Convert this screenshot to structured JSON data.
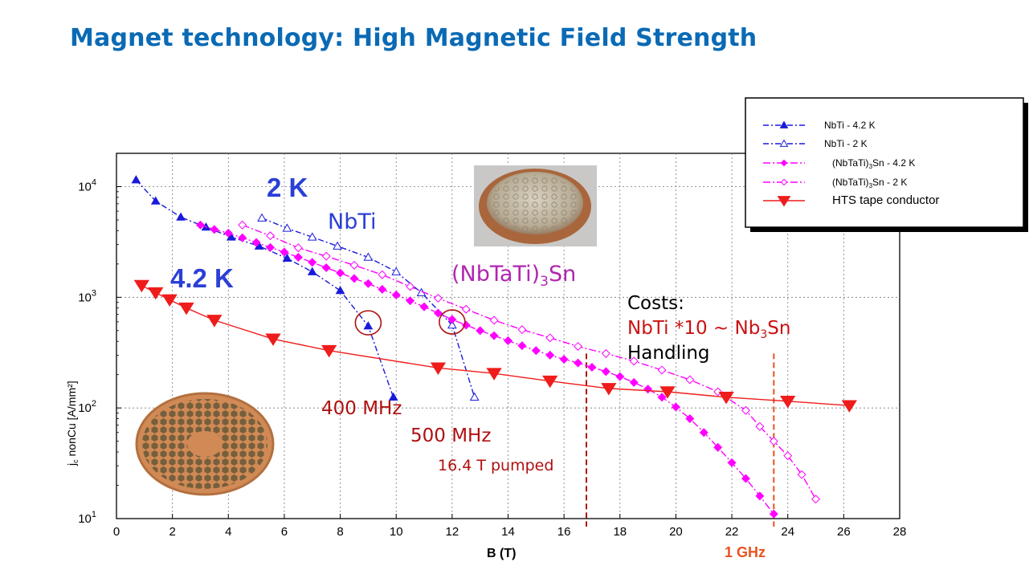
{
  "slide": {
    "title": "Magnet technology: High Magnetic Field Strength"
  },
  "colors": {
    "title": "#0a6ab5",
    "nbti": "#1a1adb",
    "nbtatisn": "#ff00ff",
    "hts": "#ef1c1c",
    "anno_blue": "#2b3fd6",
    "anno_red": "#cc1111",
    "freq_red": "#b01010",
    "ghz": "#e8531f",
    "nbtatisn_text": "#b026b0"
  },
  "chart_data": {
    "type": "line",
    "title": "",
    "xlabel": "B (T)",
    "ylabel": "j_c nonCu [A/mm²]",
    "ylabel_main": "j",
    "ylabel_sub": "c",
    "ylabel_rest": " nonCu [A/mm²]",
    "xlim": [
      0,
      28
    ],
    "ylim": [
      10,
      20000
    ],
    "yscale": "log",
    "grid": true,
    "x_ticks": [
      "0",
      "2",
      "4",
      "6",
      "8",
      "10",
      "12",
      "14",
      "16",
      "18",
      "20",
      "22",
      "24",
      "26",
      "28"
    ],
    "y_ticks": [
      {
        "value": 10,
        "base": "10",
        "exp": "1"
      },
      {
        "value": 100,
        "base": "10",
        "exp": "2"
      },
      {
        "value": 1000,
        "base": "10",
        "exp": "3"
      },
      {
        "value": 10000,
        "base": "10",
        "exp": "4"
      }
    ],
    "series": [
      {
        "name": "NbTi - 4.2 K",
        "key": "nbti42",
        "color": "#1a1adb",
        "marker": "triangle-up",
        "filled": true,
        "dash": "7,3,2,3",
        "x": [
          0.7,
          1.4,
          2.3,
          3.2,
          4.1,
          5.1,
          6.1,
          7.0,
          8.0,
          9.0,
          9.9
        ],
        "y": [
          11500,
          7400,
          5300,
          4300,
          3500,
          2900,
          2250,
          1700,
          1150,
          550,
          125
        ]
      },
      {
        "name": "NbTi - 2 K",
        "key": "nbti2",
        "color": "#1a1adb",
        "marker": "triangle-up",
        "filled": false,
        "dash": "7,3,2,3",
        "x": [
          5.2,
          6.1,
          7.0,
          7.9,
          9.0,
          10.0,
          10.9,
          12.0,
          12.8
        ],
        "y": [
          5200,
          4200,
          3500,
          2900,
          2300,
          1700,
          1100,
          560,
          125
        ]
      },
      {
        "name": "(NbTaTi)3Sn - 4.2 K",
        "key": "nb3sn42",
        "color": "#ff00ff",
        "marker": "diamond",
        "filled": true,
        "dash": "9,3,2,3",
        "x": [
          3.0,
          3.5,
          4.0,
          4.5,
          5.0,
          5.5,
          6.0,
          6.5,
          7.0,
          7.5,
          8.0,
          8.5,
          9.0,
          9.5,
          10.0,
          10.5,
          11.0,
          11.5,
          12.0,
          12.5,
          13.0,
          13.5,
          14.0,
          14.5,
          15.0,
          15.5,
          16.0,
          16.5,
          17.0,
          17.5,
          18.0,
          18.5,
          19.0,
          19.5,
          20.0,
          20.5,
          21.0,
          21.5,
          22.0,
          22.5,
          23.0,
          23.5
        ],
        "y": [
          4500,
          4100,
          3800,
          3450,
          3130,
          2820,
          2560,
          2300,
          2070,
          1850,
          1660,
          1480,
          1330,
          1180,
          1050,
          930,
          820,
          720,
          630,
          560,
          500,
          450,
          405,
          365,
          330,
          300,
          275,
          255,
          233,
          213,
          192,
          170,
          148,
          125,
          102,
          80,
          60,
          44,
          32,
          23,
          16,
          11
        ]
      },
      {
        "name": "(NbTaTi)3Sn - 2 K",
        "key": "nb3sn2",
        "color": "#ff00ff",
        "marker": "diamond",
        "filled": false,
        "dash": "9,3,2,3",
        "x": [
          4.5,
          5.5,
          6.5,
          7.5,
          8.5,
          9.5,
          10.5,
          11.5,
          12.5,
          13.5,
          14.5,
          15.5,
          16.5,
          17.5,
          18.5,
          19.5,
          20.5,
          21.5,
          22.5,
          23.0,
          23.5,
          24.0,
          24.5,
          25.0
        ],
        "y": [
          4500,
          3600,
          2800,
          2350,
          1950,
          1600,
          1250,
          980,
          780,
          620,
          510,
          430,
          360,
          310,
          265,
          220,
          180,
          140,
          95,
          68,
          50,
          37,
          25,
          15
        ]
      },
      {
        "name": "HTS tape conductor",
        "key": "hts",
        "color": "#ef1c1c",
        "marker": "triangle-down",
        "filled": true,
        "dash": "",
        "x": [
          0.9,
          1.4,
          1.9,
          2.5,
          3.5,
          5.6,
          7.6,
          11.5,
          13.5,
          15.5,
          17.6,
          19.7,
          21.8,
          24.0,
          26.2
        ],
        "y": [
          1280,
          1100,
          950,
          800,
          620,
          420,
          330,
          230,
          205,
          175,
          150,
          140,
          125,
          115,
          105
        ]
      }
    ],
    "legend": {
      "position": "top-right",
      "entries": [
        {
          "key": "nbti42",
          "label": "NbTi - 4.2 K"
        },
        {
          "key": "nbti2",
          "label": "NbTi - 2 K"
        },
        {
          "key": "nb3sn42",
          "label_pre": "(NbTaTi)",
          "label_sub": "3",
          "label_post": "Sn - 4.2 K"
        },
        {
          "key": "nb3sn2",
          "label_pre": "(NbTaTi)",
          "label_sub": "3",
          "label_post": "Sn - 2 K"
        },
        {
          "key": "hts",
          "label": "HTS tape conductor"
        }
      ]
    },
    "reference_lines": [
      {
        "x": 16.8,
        "color": "#b01010",
        "label": ""
      },
      {
        "x": 23.5,
        "color": "#e8531f",
        "label": "1 GHz"
      }
    ],
    "highlights": [
      {
        "x": 9.0,
        "y": 550
      },
      {
        "x": 12.0,
        "y": 560
      }
    ]
  },
  "annotations": {
    "label_2k": "2 K",
    "label_42k": "4.2 K",
    "nbti": "NbTi",
    "nbtatisn_pre": "(NbTaTi)",
    "nbtatisn_sub": "3",
    "nbtatisn_post": "Sn",
    "costs_title": "Costs:",
    "costs_pre": "NbTi *10 ~ Nb",
    "costs_sub": "3",
    "costs_post": "Sn",
    "handling": "Handling",
    "mhz400": "400 MHz",
    "mhz500": "500 MHz",
    "pumped": "16.4 T pumped",
    "ghz1": "1 GHz"
  }
}
